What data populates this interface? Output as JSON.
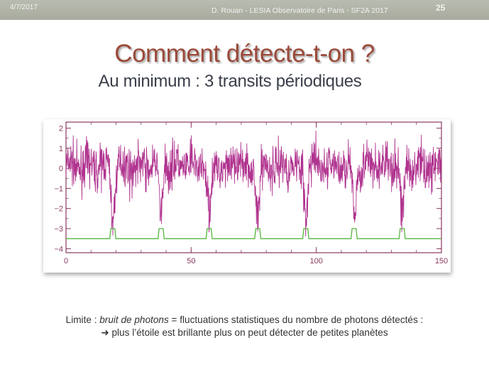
{
  "header": {
    "date": "4/7/2017",
    "credit": "D. Rouan - LESIA Observatoire de Paris - SF2A 2017",
    "page_number": "25"
  },
  "slide": {
    "title": "Comment détecte-t-on ?",
    "subtitle": "Au minimum : 3 transits périodiques"
  },
  "caption": {
    "prefix": "Limite : ",
    "emphasis": "bruit de photons",
    "rest": " = fluctuations statistiques du nombre de photons détectés :",
    "line2": "➜ plus l’étoile est brillante plus on peut détecter de petites planètes"
  },
  "chart_data": {
    "type": "line",
    "xlim": [
      0,
      150
    ],
    "ylim": [
      -4.2,
      2.3
    ],
    "x_ticks": [
      0,
      50,
      100,
      150
    ],
    "y_ticks": [
      2,
      1,
      0,
      -1,
      -2,
      -3,
      -4
    ],
    "grid": false,
    "colors": {
      "signal": "#b0338f",
      "transit": "#52b83c",
      "axis": "#8b3a62"
    },
    "transit_centers": [
      18.7,
      38,
      57.2,
      76.6,
      95.8,
      115.1,
      134.3
    ],
    "series": [
      {
        "values_description_free": true,
        "baseline": 0.1,
        "dip_depth": -3.0
      },
      {
        "baseline": -3.5,
        "pulse_height": -3.0,
        "pulse_width": 1.6
      }
    ]
  }
}
